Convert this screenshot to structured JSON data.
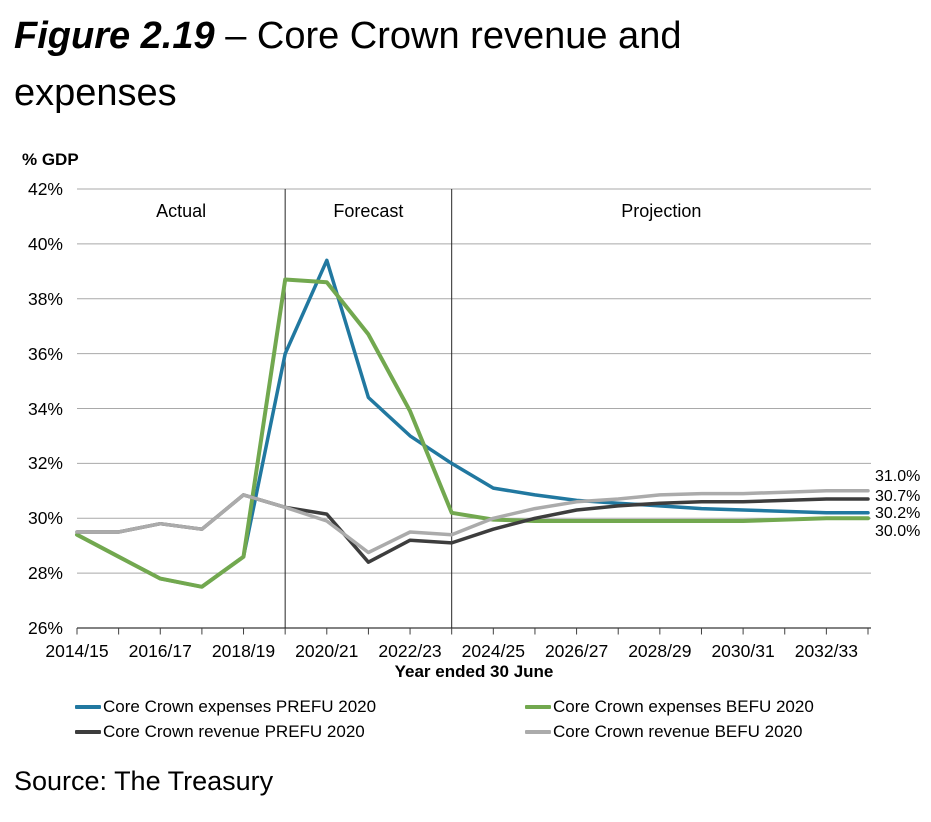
{
  "title": {
    "figure": "Figure 2.19",
    "rest": " – Core Crown revenue and expenses"
  },
  "source": {
    "text": "Source: The Treasury"
  },
  "chart": {
    "y_axis_title": "% GDP",
    "x_axis_title": "Year ended 30 June"
  },
  "chart_data": {
    "type": "line",
    "title": "Figure 2.19 – Core Crown revenue and expenses",
    "xlabel": "Year ended 30 June",
    "ylabel": "% GDP",
    "ylim": [
      26,
      42
    ],
    "grid": true,
    "legend_position": "bottom",
    "ytick_labels": [
      "42%",
      "40%",
      "38%",
      "36%",
      "34%",
      "32%",
      "30%",
      "28%",
      "26%"
    ],
    "categories": [
      "2014/15",
      "2015/16",
      "2016/17",
      "2017/18",
      "2018/19",
      "2019/20",
      "2020/21",
      "2021/22",
      "2022/23",
      "2023/24",
      "2024/25",
      "2025/26",
      "2026/27",
      "2027/28",
      "2028/29",
      "2029/30",
      "2030/31",
      "2031/32",
      "2032/33",
      "2033/34"
    ],
    "xtick_label_indices": [
      0,
      2,
      4,
      6,
      8,
      10,
      12,
      14,
      16,
      18
    ],
    "regions": [
      {
        "label": "Actual"
      },
      {
        "label": "Forecast"
      },
      {
        "label": "Projection"
      }
    ],
    "divider_indices": [
      5,
      9
    ],
    "series": [
      {
        "name": "Core Crown expenses PREFU 2020",
        "color": "#2178a0",
        "end_label": "30.2%",
        "values": [
          29.4,
          28.6,
          27.8,
          27.5,
          28.6,
          36.0,
          39.4,
          34.4,
          33.0,
          32.0,
          31.1,
          30.85,
          30.65,
          30.55,
          30.45,
          30.35,
          30.3,
          30.25,
          30.2,
          30.2
        ]
      },
      {
        "name": "Core Crown expenses BEFU 2020",
        "color": "#72a84f",
        "end_label": "30.0%",
        "values": [
          29.4,
          28.6,
          27.8,
          27.5,
          28.6,
          38.7,
          38.6,
          36.7,
          33.9,
          30.2,
          29.95,
          29.9,
          29.9,
          29.9,
          29.9,
          29.9,
          29.9,
          29.95,
          30.0,
          30.0
        ]
      },
      {
        "name": "Core Crown revenue PREFU 2020",
        "color": "#3d3d3d",
        "end_label": "30.7%",
        "values": [
          29.5,
          29.5,
          29.8,
          29.6,
          30.85,
          30.4,
          30.15,
          28.4,
          29.2,
          29.1,
          29.6,
          30.0,
          30.3,
          30.45,
          30.55,
          30.6,
          30.6,
          30.65,
          30.7,
          30.7
        ]
      },
      {
        "name": "Core Crown revenue BEFU 2020",
        "color": "#ababab",
        "end_label": "31.0%",
        "values": [
          29.5,
          29.5,
          29.8,
          29.6,
          30.85,
          30.4,
          29.9,
          28.75,
          29.5,
          29.4,
          30.0,
          30.35,
          30.6,
          30.7,
          30.85,
          30.9,
          30.9,
          30.95,
          31.0,
          31.0
        ]
      }
    ]
  }
}
